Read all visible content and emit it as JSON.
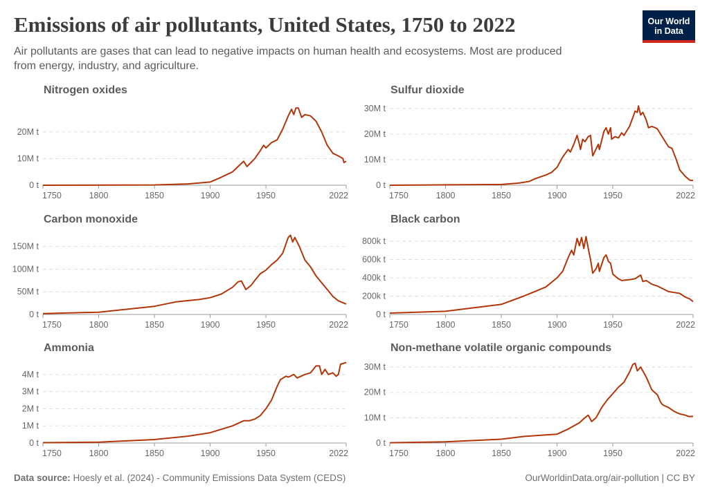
{
  "header": {
    "title": "Emissions of air pollutants, United States, 1750 to 2022",
    "subtitle": "Air pollutants are gases that can lead to negative impacts on human health and ecosystems. Most are produced from energy, industry, and agriculture.",
    "logo_text": [
      "Our World",
      "in Data"
    ],
    "logo_color": "#002147",
    "logo_accent": "#ce261e"
  },
  "footer": {
    "source_label": "Data source:",
    "source_text": " Hoesly et al. (2024) - Community Emissions Data System (CEDS)",
    "url_license": "OurWorldinData.org/air-pollution | CC BY"
  },
  "chart_data": [
    {
      "type": "line",
      "title": "Nitrogen oxides",
      "line_color": "#b13507",
      "grid": true,
      "xlim": [
        1750,
        2022
      ],
      "x_ticks": [
        "1750",
        "1800",
        "1850",
        "1900",
        "1950",
        "2022"
      ],
      "ylim": [
        0,
        30600000
      ],
      "y_ticks": [
        0,
        10000000,
        20000000
      ],
      "y_tick_labels": [
        "0 t",
        "10M t",
        "20M t"
      ],
      "x": [
        1750,
        1850,
        1880,
        1900,
        1910,
        1920,
        1925,
        1930,
        1933,
        1940,
        1945,
        1948,
        1950,
        1955,
        1960,
        1965,
        1970,
        1973,
        1975,
        1977,
        1979,
        1982,
        1985,
        1990,
        1995,
        2000,
        2005,
        2010,
        2015,
        2019,
        2020,
        2022
      ],
      "y": [
        0,
        100000,
        500000,
        1200000,
        3000000,
        5000000,
        7000000,
        9000000,
        7000000,
        10000000,
        13000000,
        15000000,
        14000000,
        16000000,
        17000000,
        21000000,
        26000000,
        28500000,
        26500000,
        29000000,
        29000000,
        25500000,
        26500000,
        26000000,
        24000000,
        20000000,
        15000000,
        12000000,
        11000000,
        10000000,
        8500000,
        9000000
      ]
    },
    {
      "type": "line",
      "title": "Sulfur dioxide",
      "line_color": "#b13507",
      "grid": true,
      "xlim": [
        1750,
        2022
      ],
      "x_ticks": [
        "1750",
        "1800",
        "1850",
        "1900",
        "1950",
        "2022"
      ],
      "ylim": [
        0,
        31900000
      ],
      "y_ticks": [
        0,
        10000000,
        20000000,
        30000000
      ],
      "y_tick_labels": [
        "0 t",
        "10M t",
        "20M t",
        "30M t"
      ],
      "x": [
        1750,
        1850,
        1865,
        1875,
        1880,
        1890,
        1895,
        1900,
        1905,
        1910,
        1912,
        1915,
        1918,
        1920,
        1921,
        1923,
        1925,
        1928,
        1930,
        1932,
        1937,
        1938,
        1942,
        1944,
        1946,
        1948,
        1949,
        1952,
        1955,
        1958,
        1960,
        1965,
        1968,
        1970,
        1972,
        1973,
        1975,
        1977,
        1980,
        1982,
        1985,
        1988,
        1990,
        1995,
        2000,
        2003,
        2007,
        2010,
        2015,
        2019,
        2022
      ],
      "y": [
        0,
        300000,
        800000,
        1500000,
        2500000,
        4000000,
        5000000,
        7000000,
        11000000,
        14000000,
        13000000,
        16000000,
        19500000,
        16000000,
        14000000,
        18000000,
        17000000,
        19000000,
        19500000,
        11500000,
        16000000,
        14000000,
        21000000,
        22500000,
        20000000,
        22500000,
        18000000,
        19000000,
        18500000,
        20500000,
        19500000,
        23000000,
        26500000,
        29000000,
        28500000,
        31000000,
        27500000,
        28500000,
        25500000,
        22500000,
        23000000,
        22500000,
        22000000,
        18500000,
        15000000,
        14500000,
        10000000,
        6000000,
        3500000,
        2000000,
        1800000
      ]
    },
    {
      "type": "line",
      "title": "Carbon monoxide",
      "line_color": "#b13507",
      "grid": true,
      "xlim": [
        1750,
        2022
      ],
      "x_ticks": [
        "1750",
        "1800",
        "1850",
        "1900",
        "1950",
        "2022"
      ],
      "ylim": [
        0,
        180000000
      ],
      "y_ticks": [
        0,
        50000000,
        100000000,
        150000000
      ],
      "y_tick_labels": [
        "0 t",
        "50M t",
        "100M t",
        "150M t"
      ],
      "x": [
        1750,
        1800,
        1850,
        1870,
        1890,
        1900,
        1910,
        1920,
        1925,
        1928,
        1932,
        1937,
        1940,
        1945,
        1950,
        1955,
        1960,
        1965,
        1970,
        1972,
        1974,
        1976,
        1980,
        1985,
        1990,
        1995,
        2000,
        2005,
        2010,
        2015,
        2022
      ],
      "y": [
        2000000,
        5000000,
        18000000,
        28000000,
        33000000,
        37000000,
        45000000,
        60000000,
        72000000,
        74000000,
        55000000,
        65000000,
        75000000,
        90000000,
        98000000,
        110000000,
        120000000,
        135000000,
        170000000,
        175000000,
        160000000,
        170000000,
        150000000,
        120000000,
        105000000,
        85000000,
        70000000,
        55000000,
        40000000,
        30000000,
        23000000
      ]
    },
    {
      "type": "line",
      "title": "Black carbon",
      "line_color": "#b13507",
      "grid": true,
      "xlim": [
        1750,
        2022
      ],
      "x_ticks": [
        "1750",
        "1800",
        "1850",
        "1900",
        "1950",
        "2022"
      ],
      "ylim": [
        0,
        890000
      ],
      "y_ticks": [
        0,
        200000,
        400000,
        600000,
        800000
      ],
      "y_tick_labels": [
        "0 t",
        "200k t",
        "400k t",
        "600k t",
        "800k t"
      ],
      "x": [
        1750,
        1800,
        1850,
        1870,
        1880,
        1890,
        1900,
        1905,
        1910,
        1913,
        1915,
        1918,
        1920,
        1922,
        1924,
        1926,
        1928,
        1930,
        1932,
        1935,
        1937,
        1938,
        1942,
        1944,
        1946,
        1948,
        1950,
        1955,
        1958,
        1965,
        1970,
        1975,
        1977,
        1980,
        1985,
        1990,
        1995,
        2000,
        2005,
        2010,
        2015,
        2019,
        2022
      ],
      "y": [
        15000,
        35000,
        110000,
        200000,
        250000,
        300000,
        400000,
        470000,
        620000,
        700000,
        650000,
        830000,
        750000,
        840000,
        720000,
        850000,
        720000,
        600000,
        450000,
        500000,
        560000,
        470000,
        620000,
        650000,
        580000,
        560000,
        440000,
        390000,
        370000,
        380000,
        390000,
        430000,
        360000,
        370000,
        330000,
        310000,
        280000,
        250000,
        240000,
        230000,
        190000,
        170000,
        140000
      ]
    },
    {
      "type": "line",
      "title": "Ammonia",
      "line_color": "#b13507",
      "grid": true,
      "xlim": [
        1750,
        2022
      ],
      "x_ticks": [
        "1750",
        "1800",
        "1850",
        "1900",
        "1950",
        "2022"
      ],
      "ylim": [
        0,
        4760000
      ],
      "y_ticks": [
        0,
        1000000,
        2000000,
        3000000,
        4000000
      ],
      "y_tick_labels": [
        "0 t",
        "1M t",
        "2M t",
        "3M t",
        "4M t"
      ],
      "x": [
        1750,
        1800,
        1850,
        1880,
        1900,
        1920,
        1930,
        1935,
        1940,
        1945,
        1950,
        1955,
        1960,
        1963,
        1968,
        1970,
        1972,
        1975,
        1978,
        1985,
        1990,
        1995,
        1998,
        2000,
        2003,
        2006,
        2010,
        2013,
        2015,
        2017,
        2022
      ],
      "y": [
        20000,
        50000,
        200000,
        400000,
        600000,
        1000000,
        1300000,
        1300000,
        1400000,
        1600000,
        2000000,
        2500000,
        3300000,
        3700000,
        3900000,
        3850000,
        3900000,
        4000000,
        3800000,
        4000000,
        4100000,
        4500000,
        4500000,
        4000000,
        4300000,
        4000000,
        4100000,
        3900000,
        4000000,
        4600000,
        4700000
      ]
    },
    {
      "type": "line",
      "title": "Non-methane volatile organic compounds",
      "line_color": "#b13507",
      "grid": true,
      "xlim": [
        1750,
        2022
      ],
      "x_ticks": [
        "1750",
        "1800",
        "1850",
        "1900",
        "1950",
        "2022"
      ],
      "ylim": [
        0,
        32200000
      ],
      "y_ticks": [
        0,
        10000000,
        20000000,
        30000000
      ],
      "y_tick_labels": [
        "0 t",
        "10M t",
        "20M t",
        "30M t"
      ],
      "x": [
        1750,
        1800,
        1850,
        1870,
        1890,
        1900,
        1910,
        1920,
        1925,
        1928,
        1931,
        1935,
        1940,
        1945,
        1950,
        1955,
        1960,
        1965,
        1968,
        1970,
        1972,
        1975,
        1980,
        1985,
        1990,
        1993,
        1995,
        2000,
        2005,
        2010,
        2015,
        2018,
        2022
      ],
      "y": [
        100000,
        500000,
        1500000,
        2600000,
        3200000,
        3500000,
        5500000,
        8000000,
        10000000,
        11000000,
        8500000,
        10000000,
        14000000,
        17000000,
        19500000,
        22000000,
        24000000,
        28000000,
        31000000,
        31500000,
        28500000,
        30000000,
        26000000,
        21000000,
        19000000,
        16000000,
        15000000,
        14000000,
        12500000,
        11500000,
        11000000,
        10500000,
        10500000
      ]
    }
  ]
}
